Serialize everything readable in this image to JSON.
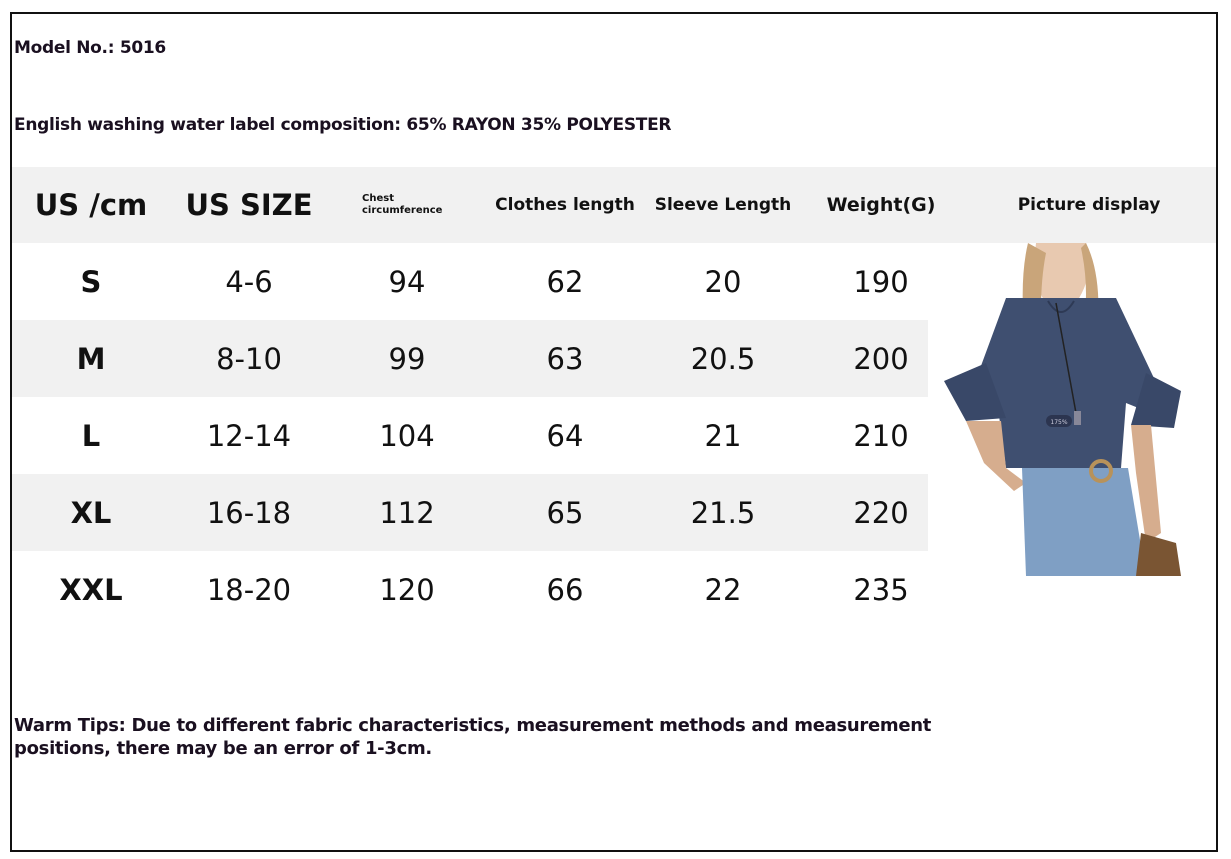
{
  "model_line": "Model No.: 5016",
  "composition_line": "English washing water label composition: 65% RAYON 35% POLYESTER",
  "table": {
    "headers": [
      "US /cm",
      "US SIZE",
      "Chest circumference",
      "Clothes length",
      "Sleeve Length",
      "Weight(G)",
      "Picture display"
    ],
    "rows": [
      [
        "S",
        "4-6",
        "94",
        "62",
        "20",
        "190"
      ],
      [
        "M",
        "8-10",
        "99",
        "63",
        "20.5",
        "200"
      ],
      [
        "L",
        "12-14",
        "104",
        "64",
        "21",
        "210"
      ],
      [
        "XL",
        "16-18",
        "112",
        "65",
        "21.5",
        "220"
      ],
      [
        "XXL",
        "18-20",
        "120",
        "66",
        "22",
        "235"
      ]
    ]
  },
  "picture": {
    "watermark": "175%",
    "shirt_color": "#3f4f70"
  },
  "warm_tips": "Warm Tips: Due to different fabric characteristics, measurement methods and measurement positions, there may be an error of 1-3cm."
}
